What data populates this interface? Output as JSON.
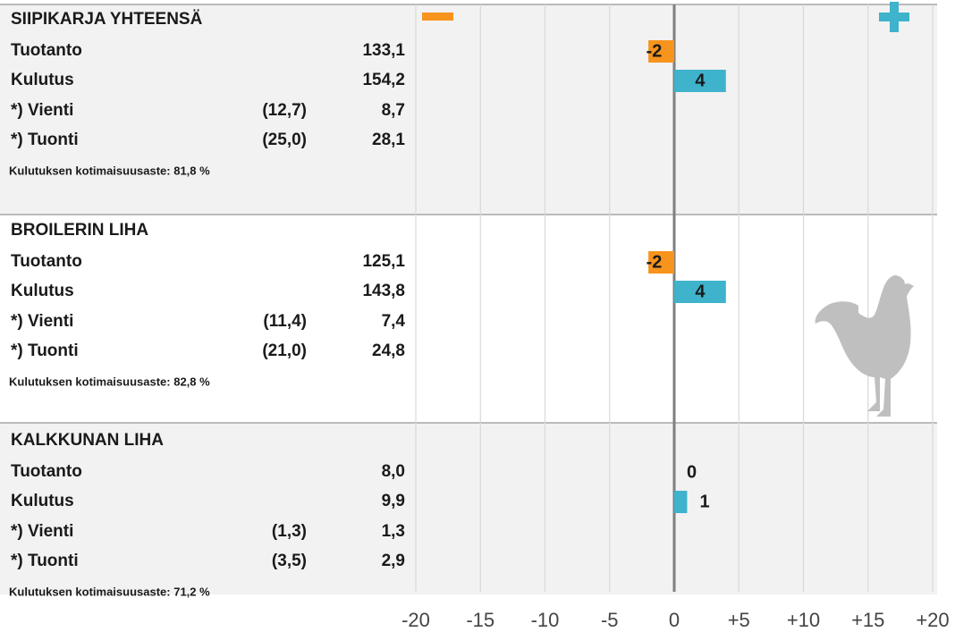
{
  "sections": [
    {
      "title": "SIIPIKARJA YHTEENSÄ",
      "rows": [
        {
          "label": "Tuotanto",
          "value": "133,1"
        },
        {
          "label": "Kulutus",
          "value": "154,2"
        },
        {
          "label": "*) Vienti",
          "prev": "(12,7)",
          "value": "8,7"
        },
        {
          "label": "*) Tuonti",
          "prev": "(25,0)",
          "value": "28,1"
        }
      ],
      "note": "Kulutuksen kotimaisuusaste: 81,8 %"
    },
    {
      "title": "BROILERIN LIHA",
      "rows": [
        {
          "label": "Tuotanto",
          "value": "125,1"
        },
        {
          "label": "Kulutus",
          "value": "143,8"
        },
        {
          "label": "*) Vienti",
          "prev": "(11,4)",
          "value": "7,4"
        },
        {
          "label": "*) Tuonti",
          "prev": "(21,0)",
          "value": "24,8"
        }
      ],
      "note": "Kulutuksen kotimaisuusaste: 82,8 %"
    },
    {
      "title": "KALKKUNAN LIHA",
      "rows": [
        {
          "label": "Tuotanto",
          "value": "8,0"
        },
        {
          "label": "Kulutus",
          "value": "9,9"
        },
        {
          "label": "*) Vienti",
          "prev": "(1,3)",
          "value": "1,3"
        },
        {
          "label": "*) Tuonti",
          "prev": "(3,5)",
          "value": "2,9"
        }
      ],
      "note": "Kulutuksen kotimaisuusaste: 71,2 %"
    }
  ],
  "chart_data": {
    "type": "bar",
    "orientation": "horizontal",
    "xlim": [
      -20,
      20
    ],
    "xticks": [
      -20,
      -15,
      -10,
      -5,
      0,
      {
        "value": 5,
        "label": "+5"
      },
      {
        "value": 10,
        "label": "+10"
      },
      {
        "value": 15,
        "label": "+15"
      },
      {
        "value": 20,
        "label": "+20"
      }
    ],
    "grid": true,
    "series": [
      {
        "color": "#f7941d",
        "values": [
          -2,
          -2,
          0
        ]
      },
      {
        "color": "#3fb3cc",
        "values": [
          4,
          4,
          1
        ]
      }
    ]
  }
}
